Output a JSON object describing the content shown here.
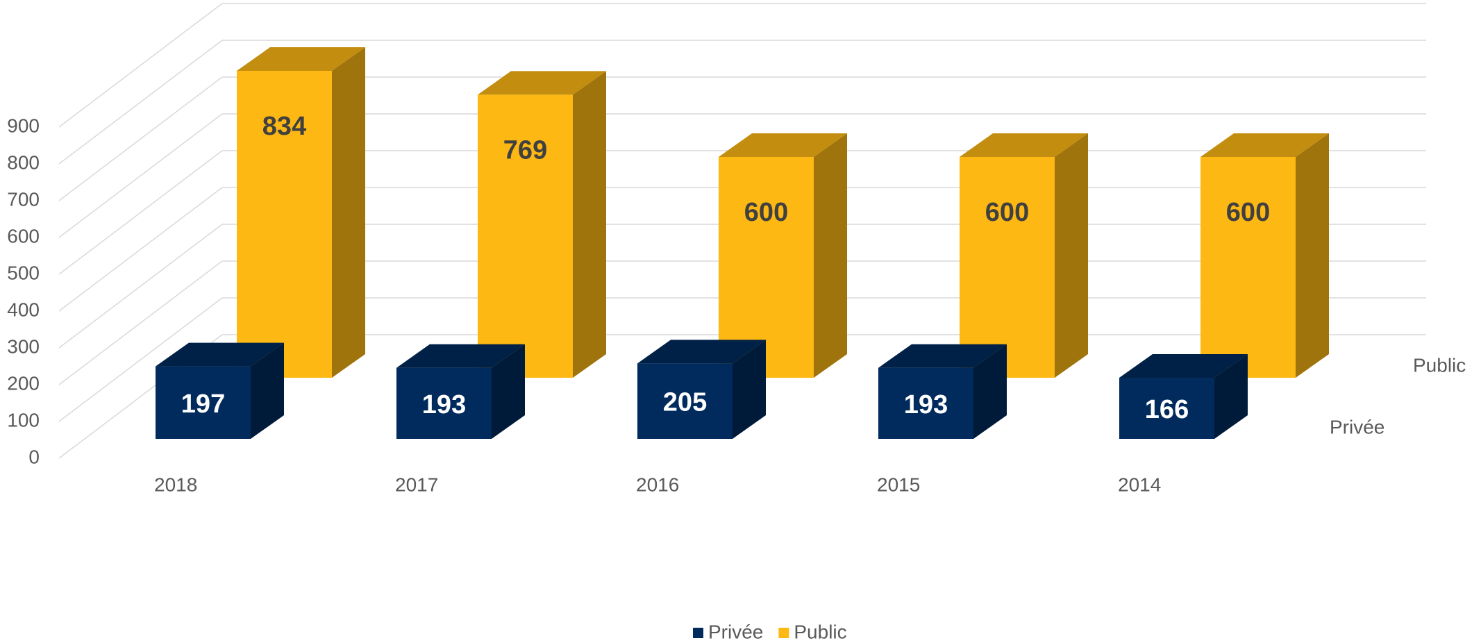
{
  "chart_data": {
    "type": "bar3d",
    "categories": [
      "2018",
      "2017",
      "2016",
      "2015",
      "2014"
    ],
    "series": [
      {
        "name": "Privée",
        "color": "#002b5c",
        "values": [
          197,
          193,
          205,
          193,
          166
        ]
      },
      {
        "name": "Public",
        "color": "#fdb813",
        "values": [
          834,
          769,
          600,
          600,
          600
        ]
      }
    ],
    "ylim": [
      0,
      900
    ],
    "yticks": [
      0,
      100,
      200,
      300,
      400,
      500,
      600,
      700,
      800,
      900
    ],
    "grid": true,
    "legend": "bottom"
  }
}
